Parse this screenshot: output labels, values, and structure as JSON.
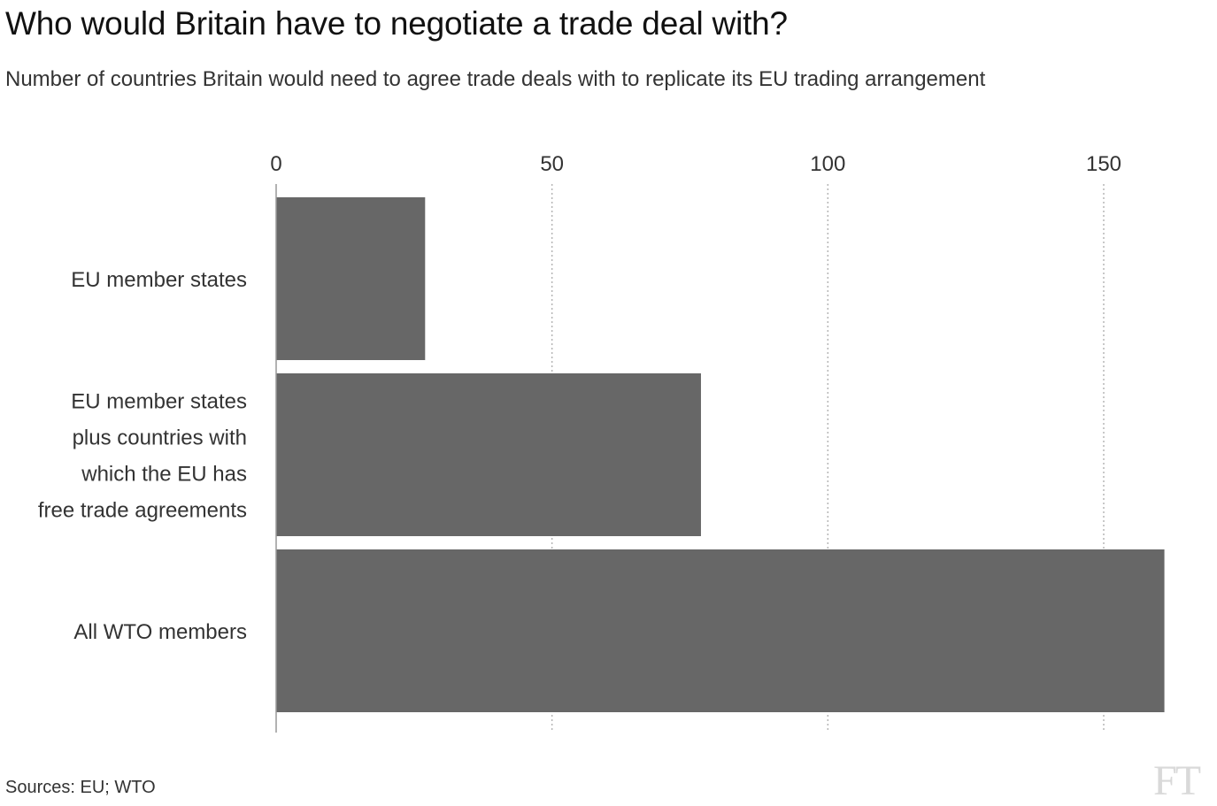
{
  "header": {
    "title": "Who would Britain have to negotiate a trade deal with?",
    "subtitle": "Number of countries Britain would need to agree trade deals with to replicate its EU trading arrangement"
  },
  "footer": {
    "source": "Sources: EU; WTO",
    "logo_text": "FT"
  },
  "colors": {
    "bar": "#676767",
    "grid": "#b5b5b5",
    "axis": "#999999",
    "text": "#333333"
  },
  "chart_data": {
    "type": "bar",
    "orientation": "horizontal",
    "title": "Who would Britain have to negotiate a trade deal with?",
    "subtitle": "Number of countries Britain would need to agree trade deals with to replicate its EU trading arrangement",
    "categories": [
      [
        "EU member states"
      ],
      [
        "EU member states",
        "plus countries with",
        "which the EU has",
        "free trade agreements"
      ],
      [
        "All WTO members"
      ]
    ],
    "values": [
      27,
      77,
      161
    ],
    "xlim": [
      0,
      161
    ],
    "xticks": [
      0,
      50,
      100,
      150
    ],
    "xtick_labels": [
      "0",
      "50",
      "100",
      "150"
    ],
    "x_axis_position": "top",
    "grid": "vertical dotted",
    "legend": "none"
  }
}
